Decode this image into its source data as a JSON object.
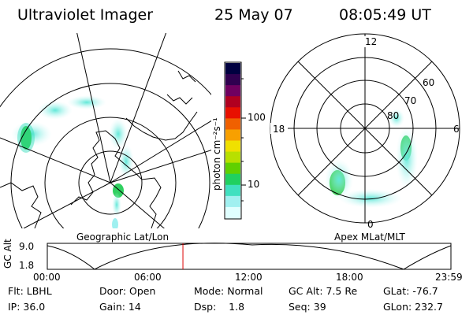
{
  "header": {
    "instrument": "Ultraviolet Imager",
    "date": "25 May 07",
    "time": "08:05:49 UT"
  },
  "colorbar": {
    "unit_label": "photon cm⁻²s⁻¹",
    "ticks": [
      "100",
      "10"
    ],
    "colors": [
      "#000040",
      "#300050",
      "#700060",
      "#b00020",
      "#e81000",
      "#f06000",
      "#f8a000",
      "#f0e000",
      "#b8e000",
      "#60d000",
      "#20d060",
      "#40e0c0",
      "#a0f0f0",
      "#e0ffff"
    ]
  },
  "left_map": {
    "caption": "Geographic Lat/Lon"
  },
  "right_map": {
    "caption": "Apex MLat/MLT",
    "mlt_labels": {
      "top": "12",
      "left": "18",
      "right": "6",
      "bottom": "0"
    },
    "lat_labels": [
      "60",
      "70",
      "80"
    ]
  },
  "altitude_plot": {
    "ylabel": "GC Alt",
    "yticks": [
      "9.0",
      "1.8"
    ],
    "xticks": [
      "00:00",
      "06:00",
      "12:00",
      "18:00",
      "23:59"
    ],
    "current_time_fraction": 0.336,
    "line_color": "#dd0000"
  },
  "info": {
    "row1": {
      "flt": "Flt: LBHL",
      "door": "Door: Open",
      "mode": "Mode: Normal",
      "gc_alt": "GC Alt: 7.5 Re",
      "glat": "GLat: -76.7"
    },
    "row2": {
      "ip": "IP: 36.0",
      "gain": "Gain: 14",
      "dsp": "Dsp:    1.8",
      "seq": "Seq: 39",
      "glon": "GLon: 232.7"
    }
  }
}
